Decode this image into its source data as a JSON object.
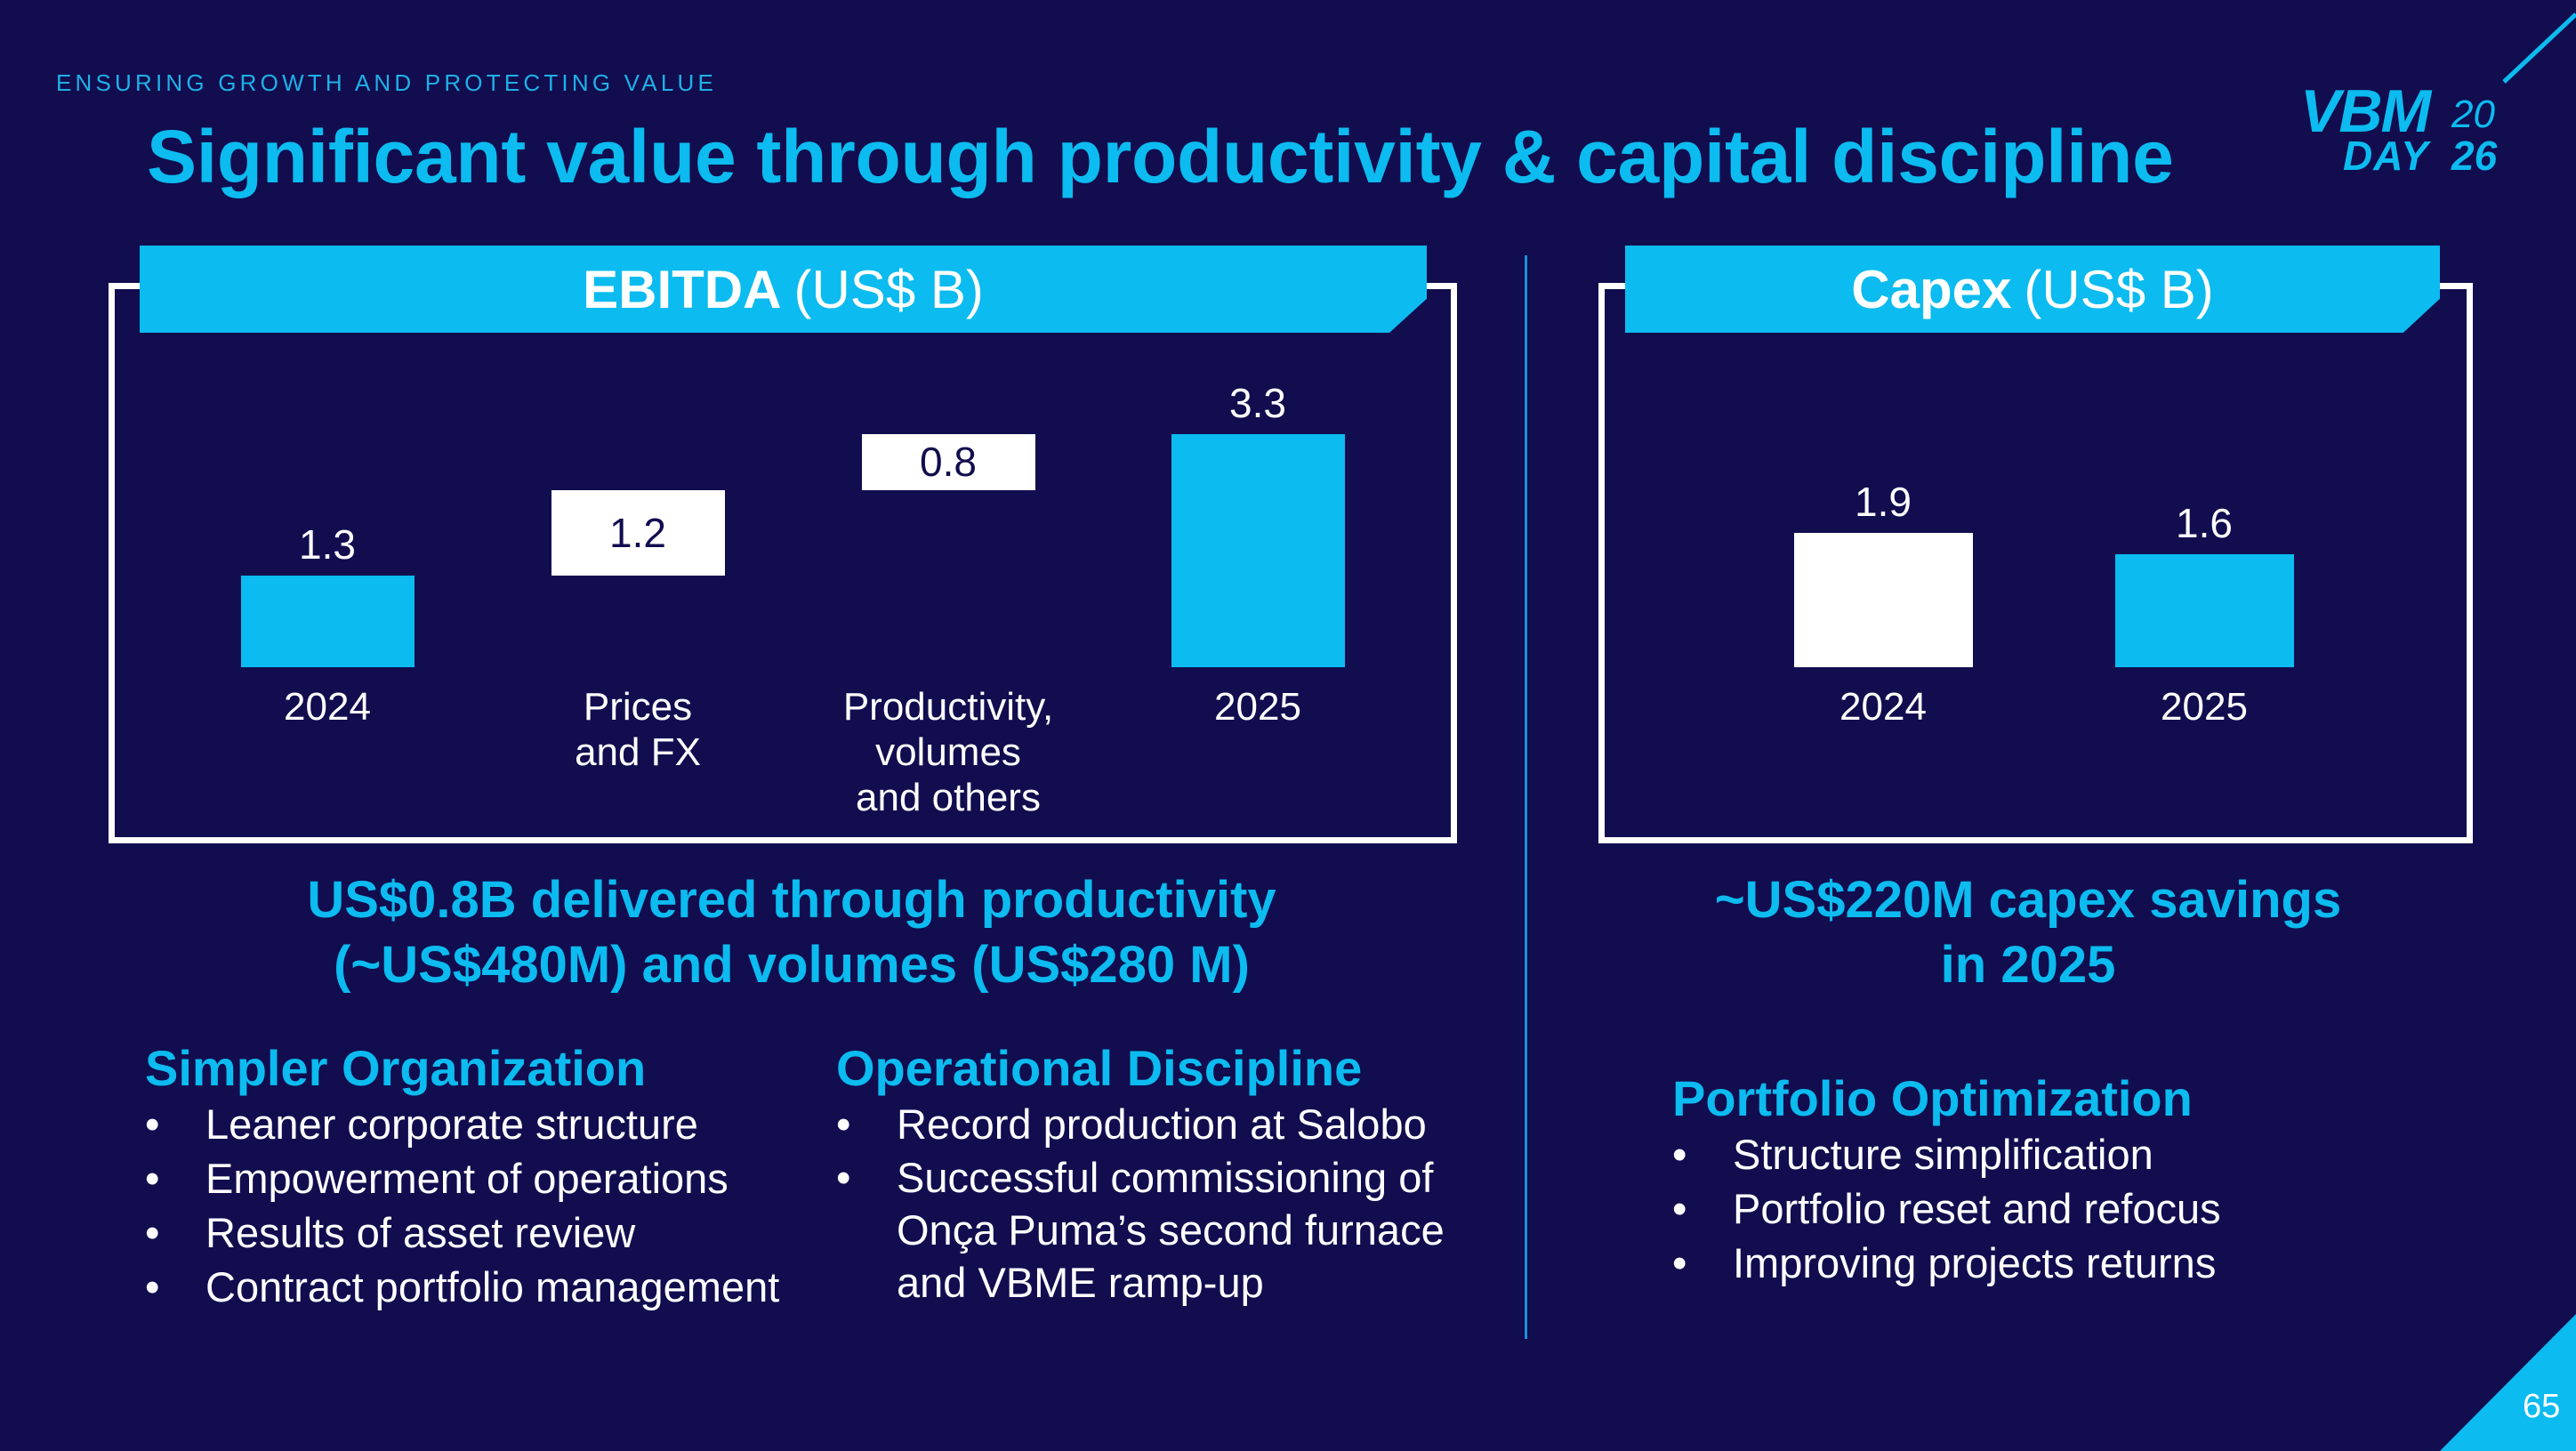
{
  "kicker": "ENSURING GROWTH AND PROTECTING VALUE",
  "title": "Significant value through productivity & capital discipline",
  "logo": {
    "line1": "VBM",
    "year_top": "20",
    "line2": "DAY",
    "year_bottom": "26"
  },
  "colors": {
    "background": "#110d4f",
    "accent": "#0cbbef",
    "white": "#ffffff"
  },
  "ebitda": {
    "header_bold": "EBITDA",
    "header_unit": "(US$ B)",
    "callout_lines": [
      "US$0.8B delivered through productivity",
      "(~US$480M) and volumes (US$280 M)"
    ]
  },
  "capex": {
    "header_bold": "Capex",
    "header_unit": "(US$ B)",
    "callout_lines": [
      "~US$220M capex savings",
      "in 2025"
    ]
  },
  "sections": {
    "simpler": {
      "title": "Simpler Organization",
      "items": [
        "Leaner corporate structure",
        "Empowerment of operations",
        "Results of asset review",
        "Contract portfolio management"
      ]
    },
    "operational": {
      "title": "Operational Discipline",
      "items": [
        "Record production at Salobo",
        "Successful commissioning of Onça Puma’s second furnace and VBME ramp-up"
      ]
    },
    "portfolio": {
      "title": "Portfolio Optimization",
      "items": [
        "Structure simplification",
        "Portfolio reset and refocus",
        "Improving projects returns"
      ]
    }
  },
  "bullet": "•",
  "page_number": "65",
  "chart_data": [
    {
      "type": "bar",
      "subtype": "waterfall",
      "title": "EBITDA (US$ B)",
      "categories": [
        "2024",
        "Prices\nand FX",
        "Productivity,\nvolumes\nand others",
        "2025"
      ],
      "values": [
        1.3,
        1.2,
        0.8,
        3.3
      ],
      "kinds": [
        "total",
        "delta",
        "delta",
        "total"
      ],
      "labels": [
        "1.3",
        "1.2",
        "0.8",
        "3.3"
      ],
      "xlabel": "",
      "ylabel": "",
      "grid": false,
      "legend": "none"
    },
    {
      "type": "bar",
      "title": "Capex (US$ B)",
      "categories": [
        "2024",
        "2025"
      ],
      "values": [
        1.9,
        1.6
      ],
      "labels": [
        "1.9",
        "1.6"
      ],
      "xlabel": "",
      "ylabel": "",
      "grid": false,
      "legend": "none"
    }
  ]
}
